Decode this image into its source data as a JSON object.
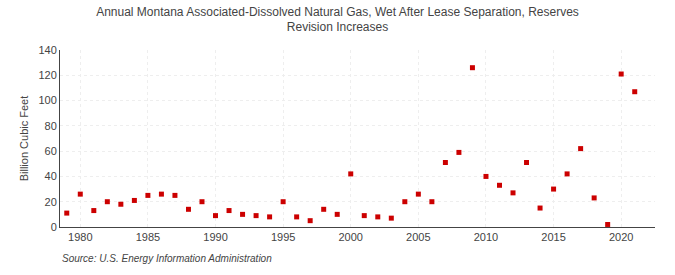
{
  "chart_data": {
    "type": "scatter",
    "title": "Annual Montana Associated-Dissolved Natural Gas, Wet After Lease Separation, Reserves\nRevision Increases",
    "ylabel": "Billion Cubic Feet",
    "source": "Source: U.S. Energy Information Administration",
    "x": [
      1979,
      1980,
      1981,
      1982,
      1983,
      1984,
      1985,
      1986,
      1987,
      1988,
      1989,
      1990,
      1991,
      1992,
      1993,
      1994,
      1995,
      1996,
      1997,
      1998,
      1999,
      2000,
      2001,
      2002,
      2003,
      2004,
      2005,
      2006,
      2007,
      2008,
      2009,
      2010,
      2011,
      2012,
      2013,
      2014,
      2015,
      2016,
      2017,
      2018,
      2019,
      2020,
      2021
    ],
    "values": [
      11,
      26,
      13,
      20,
      18,
      21,
      25,
      26,
      25,
      14,
      20,
      9,
      13,
      10,
      9,
      8,
      20,
      8,
      5,
      14,
      10,
      42,
      9,
      8,
      7,
      20,
      26,
      20,
      51,
      59,
      126,
      40,
      33,
      27,
      51,
      15,
      30,
      42,
      62,
      23,
      2,
      121,
      107
    ],
    "color": "#cc0000",
    "marker": "square",
    "xlim": [
      1978.5,
      2022.5
    ],
    "ylim": [
      0,
      140
    ],
    "xticks": [
      1980,
      1985,
      1990,
      1995,
      2000,
      2005,
      2010,
      2015,
      2020
    ],
    "yticks": [
      0,
      20,
      40,
      60,
      80,
      100,
      120,
      140
    ],
    "grid": true
  }
}
